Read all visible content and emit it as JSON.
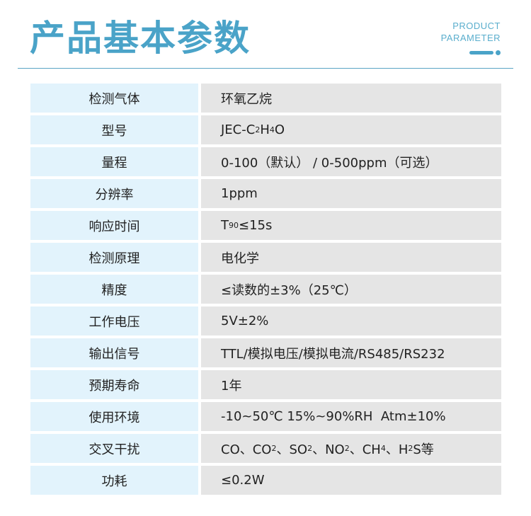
{
  "header": {
    "title": "产品基本参数",
    "subtitle_line1": "PRODUCT",
    "subtitle_line2": "PARAMETER",
    "accent": "#4aa3c8"
  },
  "rows": [
    {
      "label": "检测气体",
      "value": [
        {
          "t": "环氧乙烷"
        }
      ]
    },
    {
      "label": "型号",
      "value": [
        {
          "t": "JEC-C"
        },
        {
          "t": "2",
          "sub": true
        },
        {
          "t": "H"
        },
        {
          "t": "4",
          "sub": true
        },
        {
          "t": "O"
        }
      ]
    },
    {
      "label": "量程",
      "value": [
        {
          "t": "0-100（默认） / 0-500ppm（可选）"
        }
      ]
    },
    {
      "label": "分辨率",
      "value": [
        {
          "t": "1ppm"
        }
      ]
    },
    {
      "label": "响应时间",
      "value": [
        {
          "t": "T"
        },
        {
          "t": "90",
          "sub": true
        },
        {
          "t": "≤15s"
        }
      ]
    },
    {
      "label": "检测原理",
      "value": [
        {
          "t": "电化学"
        }
      ]
    },
    {
      "label": "精度",
      "value": [
        {
          "t": "≤读数的±3%（25℃）"
        }
      ]
    },
    {
      "label": "工作电压",
      "value": [
        {
          "t": "5V±2%"
        }
      ]
    },
    {
      "label": "输出信号",
      "value": [
        {
          "t": "TTL/模拟电压/模拟电流/RS485/RS232"
        }
      ]
    },
    {
      "label": "预期寿命",
      "value": [
        {
          "t": "1年"
        }
      ]
    },
    {
      "label": "使用环境",
      "value": [
        {
          "t": "-10~50℃ 15%~90%RH  Atm±10%"
        }
      ]
    },
    {
      "label": "交叉干扰",
      "value": [
        {
          "t": "CO、CO"
        },
        {
          "t": "2",
          "sub": true
        },
        {
          "t": "、SO"
        },
        {
          "t": "2",
          "sub": true
        },
        {
          "t": "、NO"
        },
        {
          "t": "2",
          "sub": true
        },
        {
          "t": "、CH"
        },
        {
          "t": "4",
          "sub": true
        },
        {
          "t": "、H"
        },
        {
          "t": "2",
          "sub": true
        },
        {
          "t": "S等"
        }
      ]
    },
    {
      "label": "功耗",
      "value": [
        {
          "t": "≤0.2W"
        }
      ]
    }
  ]
}
